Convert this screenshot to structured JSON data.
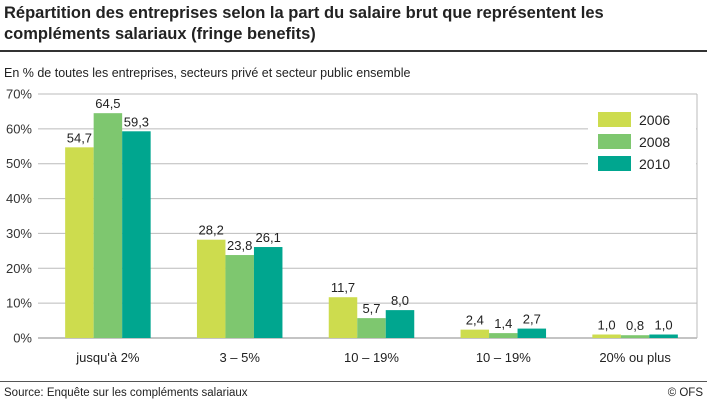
{
  "chart_data": {
    "type": "bar",
    "title": "Répartition des entreprises selon la part du salaire brut que représentent les compléments salariaux (fringe benefits)",
    "subtitle": "En % de toutes les entreprises, secteurs privé et secteur public ensemble",
    "categories": [
      "jusqu'à 2%",
      "3 – 5%",
      "10 – 19%",
      "10 – 19%",
      "20% ou plus"
    ],
    "series": [
      {
        "name": "2006",
        "color": "#cddc4e",
        "values": [
          54.7,
          28.2,
          11.7,
          2.4,
          1.0
        ],
        "labels": [
          "54,7",
          "28,2",
          "11,7",
          "2,4",
          "1,0"
        ]
      },
      {
        "name": "2008",
        "color": "#7ec76f",
        "values": [
          64.5,
          23.8,
          5.7,
          1.4,
          0.8
        ],
        "labels": [
          "64,5",
          "23,8",
          "5,7",
          "1,4",
          "0,8"
        ]
      },
      {
        "name": "2010",
        "color": "#00a68f",
        "values": [
          59.3,
          26.1,
          8.0,
          2.7,
          1.0
        ],
        "labels": [
          "59,3",
          "26,1",
          "8,0",
          "2,7",
          "1,0"
        ]
      }
    ],
    "ylim": [
      0,
      70
    ],
    "yticks": [
      "0%",
      "10%",
      "20%",
      "30%",
      "40%",
      "50%",
      "60%",
      "70%"
    ],
    "grid": true,
    "legend": "top-right",
    "source": "Source: Enquête sur les compléments salariaux",
    "credit": "© OFS"
  }
}
